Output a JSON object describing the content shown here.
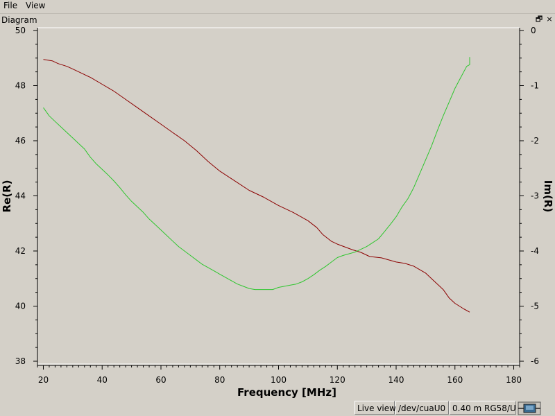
{
  "menu": {
    "file": "File",
    "view": "View"
  },
  "panel": {
    "title": "Diagram",
    "float_glyph": "🗗",
    "close_glyph": "×"
  },
  "status": {
    "mode": "Live view",
    "device": "/dev/cuaU0",
    "cable": "0.40 m RG58/U",
    "icon": "analyzer-device-icon"
  },
  "colors": {
    "re": "#8b0000",
    "im": "#2ec62e",
    "plot_bg": "#d4d0c8"
  },
  "chart_data": {
    "type": "line",
    "xlabel": "Frequency [MHz]",
    "ylabel": "Re(R)",
    "y2label": "Im(R)",
    "xlim": [
      18,
      182
    ],
    "ylim": [
      38,
      50
    ],
    "y2lim": [
      -6,
      0
    ],
    "xticks": [
      20,
      40,
      60,
      80,
      100,
      120,
      140,
      160,
      180
    ],
    "yticks": [
      38,
      40,
      42,
      44,
      46,
      48,
      50
    ],
    "y2ticks": [
      0,
      -1,
      -2,
      -3,
      -4,
      -5,
      -6
    ],
    "grid": false,
    "series": [
      {
        "axis": "left",
        "x": [
          20,
          23,
          25,
          28,
          30,
          33,
          36,
          40,
          44,
          48,
          52,
          56,
          60,
          64,
          68,
          72,
          76,
          80,
          85,
          90,
          95,
          100,
          105,
          110,
          113,
          115,
          118,
          120,
          125,
          128,
          131,
          135,
          140,
          143,
          146,
          150,
          153,
          156,
          158,
          160,
          163,
          165
        ],
        "y": [
          48.95,
          48.9,
          48.8,
          48.7,
          48.6,
          48.45,
          48.3,
          48.05,
          47.8,
          47.5,
          47.2,
          46.9,
          46.6,
          46.3,
          46.0,
          45.65,
          45.25,
          44.9,
          44.55,
          44.2,
          43.95,
          43.65,
          43.4,
          43.1,
          42.85,
          42.6,
          42.35,
          42.25,
          42.05,
          41.95,
          41.8,
          41.75,
          41.6,
          41.55,
          41.45,
          41.2,
          40.9,
          40.6,
          40.3,
          40.1,
          39.9,
          39.78
        ]
      },
      {
        "axis": "right",
        "x": [
          20,
          22,
          24,
          26,
          28,
          30,
          32,
          34,
          36,
          38,
          40,
          42,
          44,
          46,
          48,
          50,
          52,
          54,
          56,
          58,
          60,
          62,
          64,
          66,
          68,
          70,
          72,
          74,
          76,
          78,
          80,
          82,
          84,
          86,
          88,
          90,
          92,
          94,
          96,
          98,
          100,
          102,
          104,
          106,
          108,
          110,
          112,
          114,
          116,
          118,
          120,
          122,
          124,
          126,
          128,
          130,
          132,
          134,
          136,
          138,
          140,
          142,
          144,
          146,
          148,
          150,
          152,
          154,
          156,
          158,
          160,
          162,
          164,
          165,
          165
        ],
        "y": [
          -1.4,
          -1.55,
          -1.65,
          -1.75,
          -1.85,
          -1.95,
          -2.05,
          -2.15,
          -2.3,
          -2.42,
          -2.52,
          -2.62,
          -2.73,
          -2.85,
          -2.98,
          -3.1,
          -3.2,
          -3.3,
          -3.42,
          -3.52,
          -3.62,
          -3.72,
          -3.82,
          -3.92,
          -4.0,
          -4.08,
          -4.16,
          -4.24,
          -4.3,
          -4.36,
          -4.42,
          -4.48,
          -4.54,
          -4.6,
          -4.64,
          -4.68,
          -4.7,
          -4.7,
          -4.7,
          -4.7,
          -4.66,
          -4.64,
          -4.62,
          -4.6,
          -4.56,
          -4.5,
          -4.43,
          -4.35,
          -4.28,
          -4.2,
          -4.12,
          -4.08,
          -4.05,
          -4.02,
          -3.97,
          -3.92,
          -3.85,
          -3.78,
          -3.65,
          -3.52,
          -3.38,
          -3.2,
          -3.05,
          -2.85,
          -2.6,
          -2.35,
          -2.1,
          -1.82,
          -1.55,
          -1.3,
          -1.05,
          -0.85,
          -0.65,
          -0.62,
          -0.48
        ]
      }
    ]
  }
}
